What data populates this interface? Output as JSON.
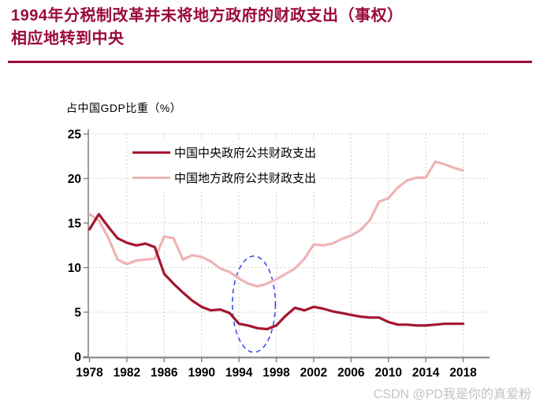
{
  "page": {
    "background": "#ffffff"
  },
  "header": {
    "title": "1994年分税制改革并未将地方政府的财政支出（事权）\n相应地转到中央",
    "title_color": "#9b0a3c",
    "rule_color": "#9b0a3c"
  },
  "chart_data": {
    "type": "line",
    "y_axis_title": "占中国GDP比重（%）",
    "ylim": [
      0,
      25
    ],
    "y_ticks": [
      0,
      5,
      10,
      15,
      20,
      25
    ],
    "x_ticks": [
      1978,
      1982,
      1986,
      1990,
      1994,
      1998,
      2002,
      2006,
      2010,
      2014,
      2018
    ],
    "x": [
      1978,
      1979,
      1980,
      1981,
      1982,
      1983,
      1984,
      1985,
      1986,
      1987,
      1988,
      1989,
      1990,
      1991,
      1992,
      1993,
      1994,
      1995,
      1996,
      1997,
      1998,
      1999,
      2000,
      2001,
      2002,
      2003,
      2004,
      2005,
      2006,
      2007,
      2008,
      2009,
      2010,
      2011,
      2012,
      2013,
      2014,
      2015,
      2016,
      2017,
      2018
    ],
    "series": [
      {
        "name": "中国中央政府公共财政支出",
        "color": "#a4152e",
        "values": [
          14.3,
          16.0,
          14.6,
          13.3,
          12.8,
          12.5,
          12.7,
          12.3,
          9.3,
          8.2,
          7.2,
          6.3,
          5.6,
          5.2,
          5.3,
          4.9,
          3.7,
          3.5,
          3.2,
          3.1,
          3.5,
          4.6,
          5.5,
          5.2,
          5.6,
          5.4,
          5.1,
          4.9,
          4.7,
          4.5,
          4.4,
          4.4,
          3.9,
          3.6,
          3.6,
          3.5,
          3.5,
          3.6,
          3.7,
          3.7,
          3.7
        ]
      },
      {
        "name": "中国地方政府公共财政支出",
        "color": "#efb3b5",
        "values": [
          16.0,
          15.3,
          13.4,
          10.9,
          10.4,
          10.8,
          10.9,
          11.0,
          13.5,
          13.3,
          10.9,
          11.4,
          11.2,
          10.7,
          9.9,
          9.5,
          8.8,
          8.2,
          7.9,
          8.2,
          8.7,
          9.3,
          9.9,
          11.0,
          12.6,
          12.5,
          12.7,
          13.2,
          13.6,
          14.2,
          15.3,
          17.4,
          17.8,
          19.0,
          19.8,
          20.1,
          20.1,
          21.9,
          21.6,
          21.2,
          20.9
        ]
      }
    ],
    "grid": "dotted",
    "legend_position": "top-left-inside",
    "axis_color": "#7f7f7f",
    "grid_color": "#c8c8c8",
    "tick_label_color": "#000000",
    "highlight_ellipse": {
      "style": "dashed",
      "color": "#3b4fe8",
      "year_center": 1995.6,
      "value_center": 5.9,
      "year_radius": 2.3,
      "value_radius": 5.4
    }
  },
  "watermark": {
    "text": "CSDN @PD我是你的真爱粉",
    "color": "#c3c3c3"
  }
}
